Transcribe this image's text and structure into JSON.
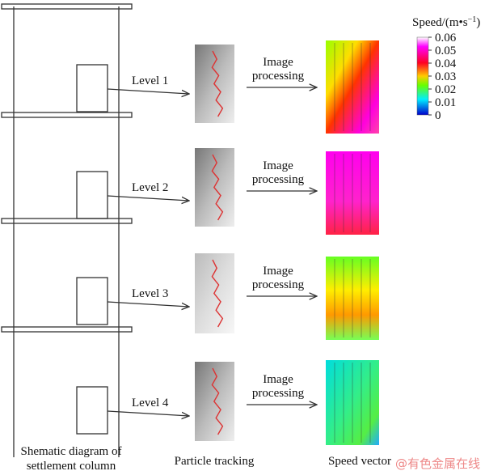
{
  "column": {
    "caption": [
      "Shematic diagram of",
      "settlement column"
    ]
  },
  "levels": [
    {
      "label": "Level 1",
      "process": [
        "Image",
        "processing"
      ]
    },
    {
      "label": "Level 2",
      "process": [
        "Image",
        "processing"
      ]
    },
    {
      "label": "Level 3",
      "process": [
        "Image",
        "processing"
      ]
    },
    {
      "label": "Level 4",
      "process": [
        "Image",
        "processing"
      ]
    }
  ],
  "captions": {
    "tracking": "Particle tracking",
    "speed": "Speed vector"
  },
  "colorbar": {
    "title": "Speed/(m•s",
    "exponent": "−1",
    "close": ")",
    "ticks": [
      "0.06",
      "0.05",
      "0.04",
      "0.03",
      "0.02",
      "0.01",
      "0"
    ]
  },
  "watermark": "@有色金属在线"
}
